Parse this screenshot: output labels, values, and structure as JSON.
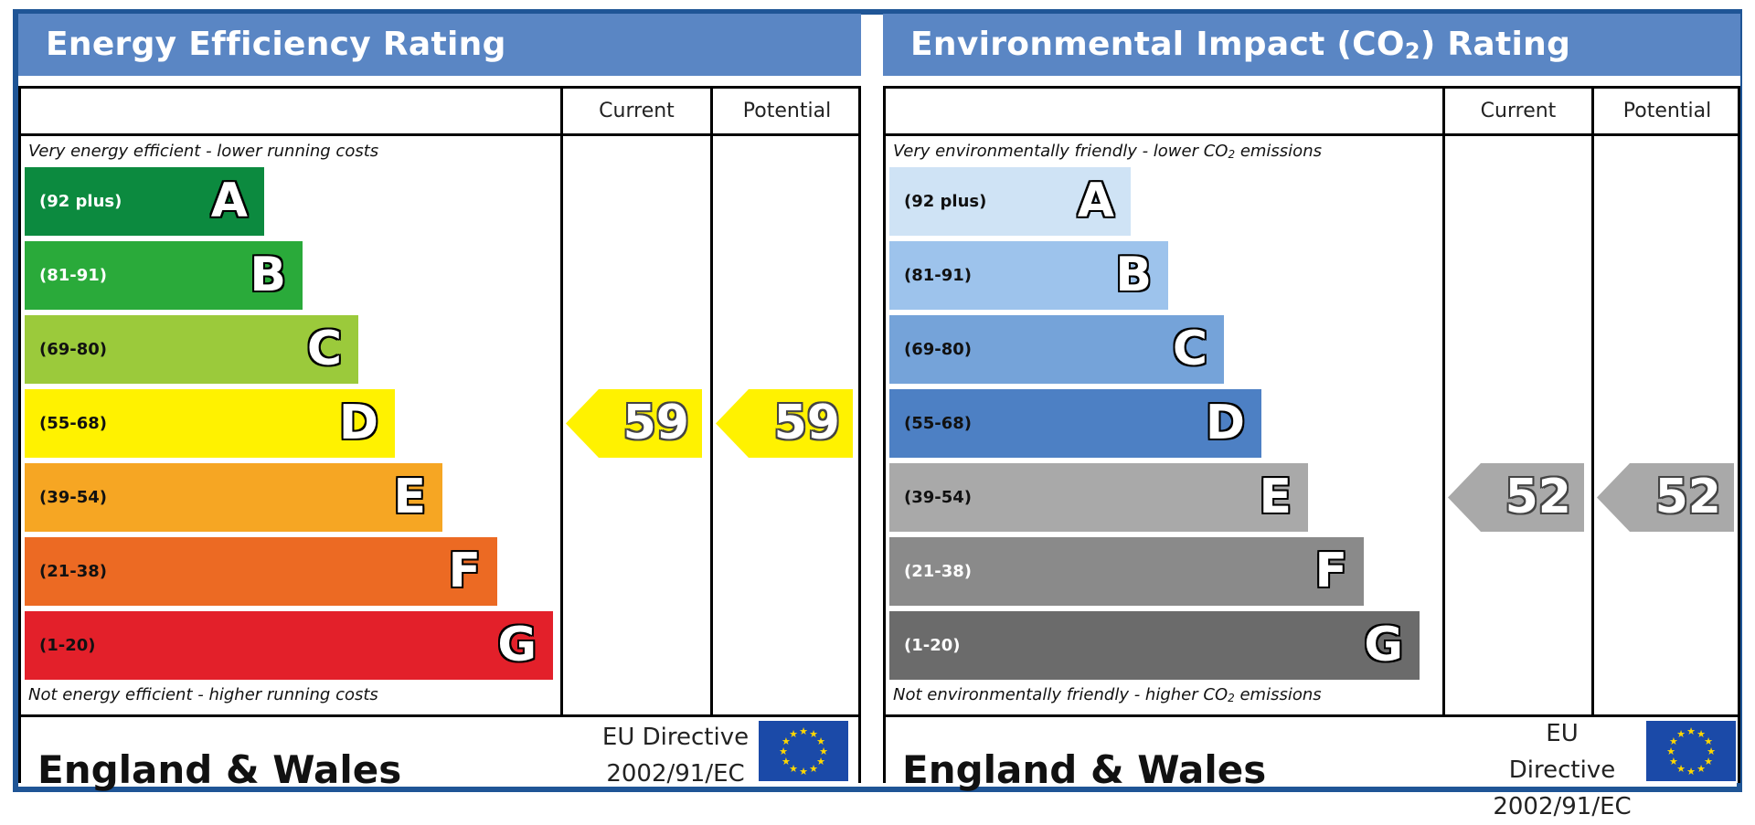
{
  "chart_data": [
    {
      "type": "bar",
      "title": "Energy Efficiency Rating",
      "columns": [
        "Current",
        "Potential"
      ],
      "top_caption": "Very energy efficient - lower running costs",
      "bottom_caption": "Not energy efficient - higher running costs",
      "bands": [
        {
          "letter": "A",
          "range": "(92 plus)",
          "color": "#0c8a3f",
          "text_color": "#ffffff"
        },
        {
          "letter": "B",
          "range": "(81-91)",
          "color": "#2aaa3a",
          "text_color": "#ffffff"
        },
        {
          "letter": "C",
          "range": "(69-80)",
          "color": "#9bca3b",
          "text_color": "#111111"
        },
        {
          "letter": "D",
          "range": "(55-68)",
          "color": "#fff200",
          "text_color": "#111111"
        },
        {
          "letter": "E",
          "range": "(39-54)",
          "color": "#f6a623",
          "text_color": "#111111"
        },
        {
          "letter": "F",
          "range": "(21-38)",
          "color": "#ec6a23",
          "text_color": "#111111"
        },
        {
          "letter": "G",
          "range": "(1-20)",
          "color": "#e3202a",
          "text_color": "#111111"
        }
      ],
      "current": {
        "value": 59,
        "band": "D",
        "color": "#fff200"
      },
      "potential": {
        "value": 59,
        "band": "D",
        "color": "#fff200"
      },
      "footer_region": "England & Wales",
      "footer_directive_line1": "EU Directive",
      "footer_directive_line2": "2002/91/EC"
    },
    {
      "type": "bar",
      "title_prefix": "Environmental Impact (CO",
      "title_sub": "2",
      "title_suffix": ") Rating",
      "columns": [
        "Current",
        "Potential"
      ],
      "top_caption_prefix": "Very environmentally friendly - lower CO",
      "top_caption_sub": "2",
      "top_caption_suffix": " emissions",
      "bottom_caption_prefix": "Not environmentally friendly - higher CO",
      "bottom_caption_sub": "2",
      "bottom_caption_suffix": " emissions",
      "bands": [
        {
          "letter": "A",
          "range": "(92 plus)",
          "color": "#cfe3f5",
          "text_color": "#111111"
        },
        {
          "letter": "B",
          "range": "(81-91)",
          "color": "#9dc3ec",
          "text_color": "#111111"
        },
        {
          "letter": "C",
          "range": "(69-80)",
          "color": "#75a3d9",
          "text_color": "#111111"
        },
        {
          "letter": "D",
          "range": "(55-68)",
          "color": "#4d80c4",
          "text_color": "#111111"
        },
        {
          "letter": "E",
          "range": "(39-54)",
          "color": "#a9a9a9",
          "text_color": "#111111"
        },
        {
          "letter": "F",
          "range": "(21-38)",
          "color": "#8a8a8a",
          "text_color": "#ffffff"
        },
        {
          "letter": "G",
          "range": "(1-20)",
          "color": "#6b6b6b",
          "text_color": "#ffffff"
        }
      ],
      "current": {
        "value": 52,
        "band": "E",
        "color": "#a9a9a9"
      },
      "potential": {
        "value": 52,
        "band": "E",
        "color": "#a9a9a9"
      },
      "footer_region": "England & Wales",
      "footer_directive_line1": "EU Directive",
      "footer_directive_line2": "2002/91/EC"
    }
  ]
}
